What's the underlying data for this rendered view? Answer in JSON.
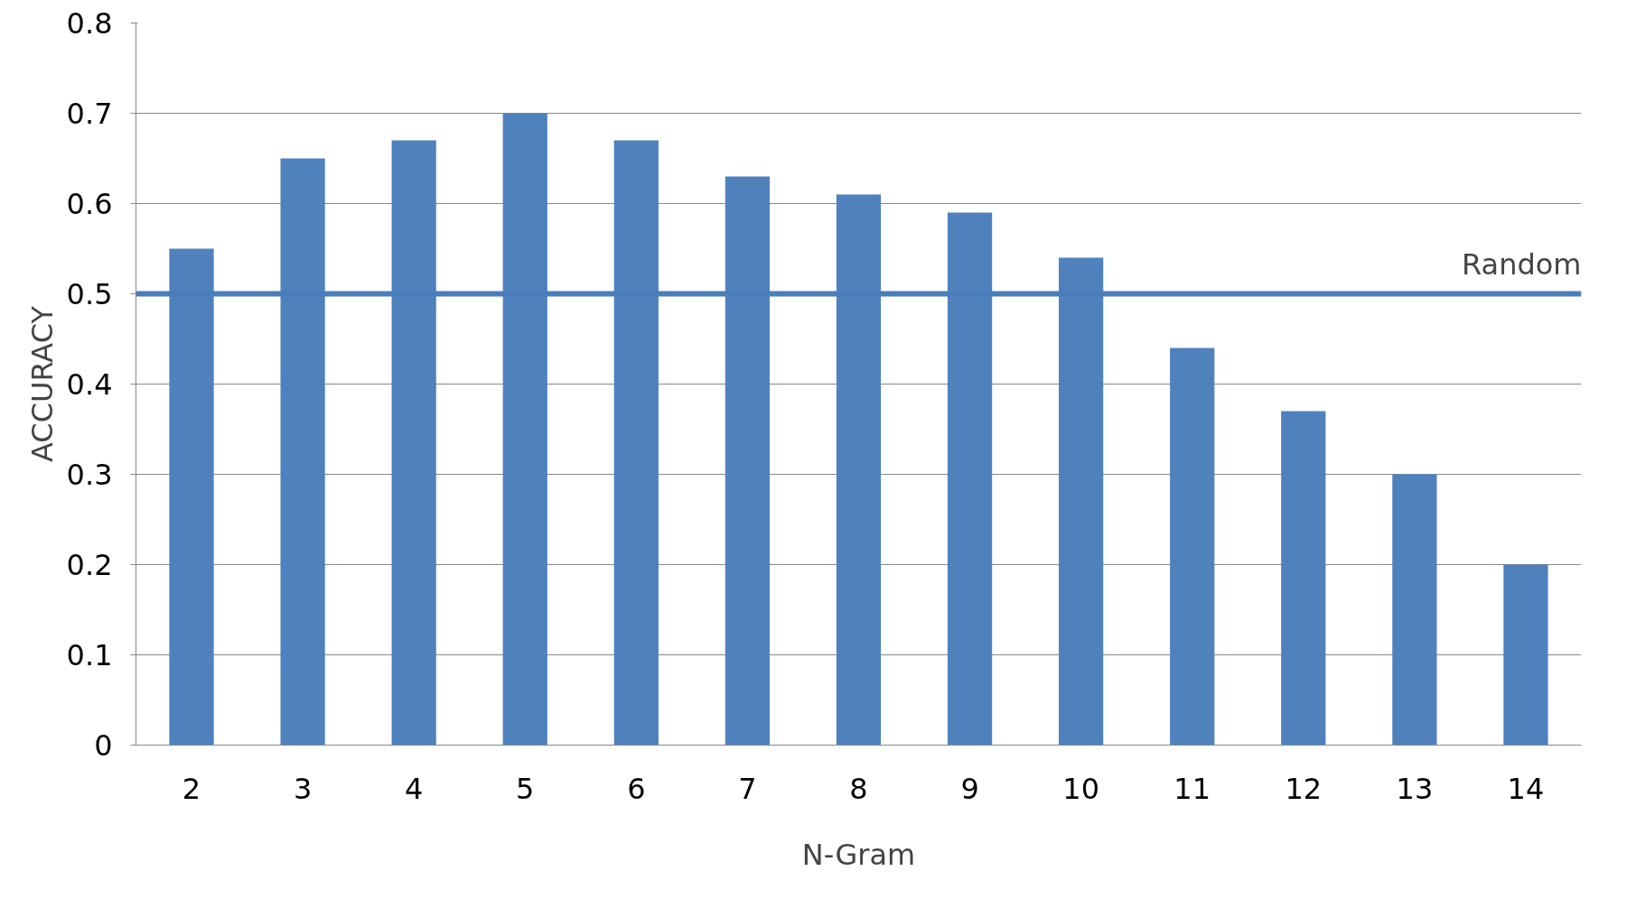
{
  "chart_data": {
    "type": "bar",
    "xlabel": "N-Gram",
    "ylabel": "ACCURACY",
    "categories": [
      "2",
      "3",
      "4",
      "5",
      "6",
      "7",
      "8",
      "9",
      "10",
      "11",
      "12",
      "13",
      "14"
    ],
    "values": [
      0.55,
      0.65,
      0.67,
      0.7,
      0.67,
      0.63,
      0.61,
      0.59,
      0.54,
      0.44,
      0.37,
      0.3,
      0.2
    ],
    "color": "#4f81bd",
    "ylim": [
      0,
      0.8
    ],
    "yticks": [
      0,
      0.1,
      0.2,
      0.3,
      0.4,
      0.5,
      0.6,
      0.7,
      0.8
    ],
    "grid": "y",
    "ref_lines": [
      {
        "axis": "y",
        "value": 0.5,
        "label": "Random",
        "color": "#4a7ebb"
      }
    ]
  }
}
